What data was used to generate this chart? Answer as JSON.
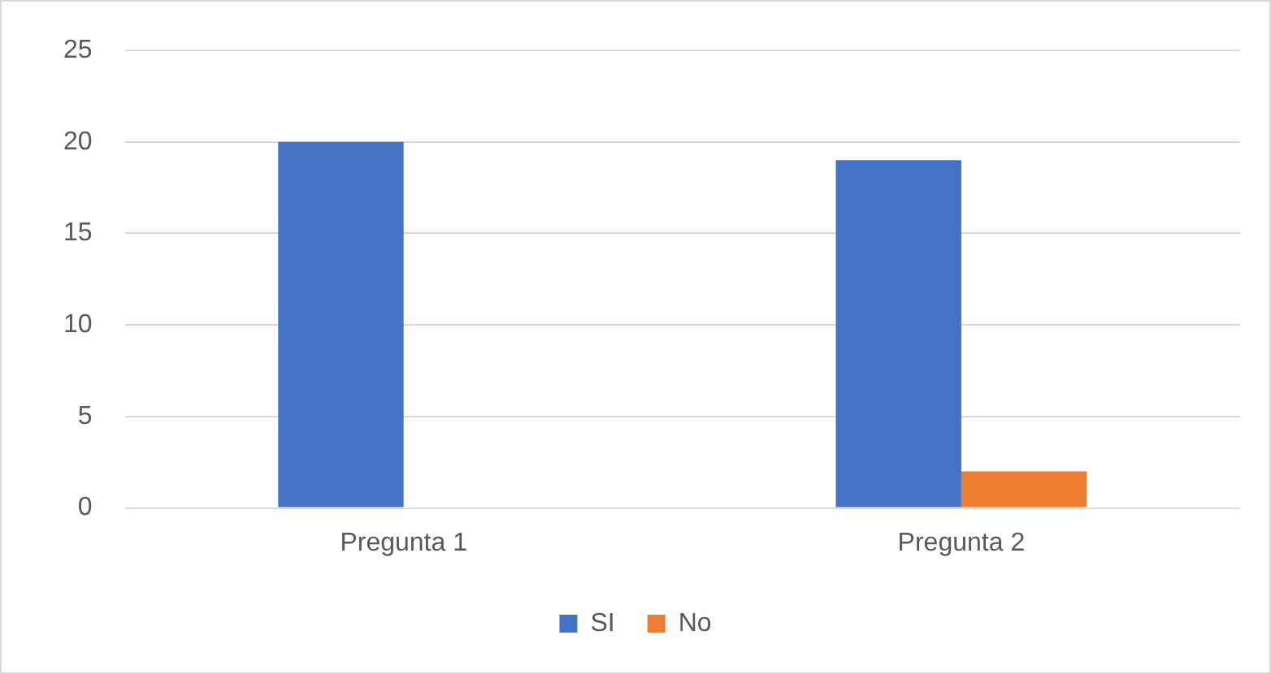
{
  "chart_data": {
    "type": "bar",
    "categories": [
      "Pregunta 1",
      "Pregunta 2"
    ],
    "series": [
      {
        "name": "SI",
        "color": "#4472c4",
        "values": [
          20,
          19
        ]
      },
      {
        "name": "No",
        "color": "#ed7d31",
        "values": [
          0,
          2
        ]
      }
    ],
    "ylim": [
      0,
      25
    ],
    "yticks": [
      0,
      5,
      10,
      15,
      20,
      25
    ],
    "grid": "y",
    "legend": "bottom"
  }
}
